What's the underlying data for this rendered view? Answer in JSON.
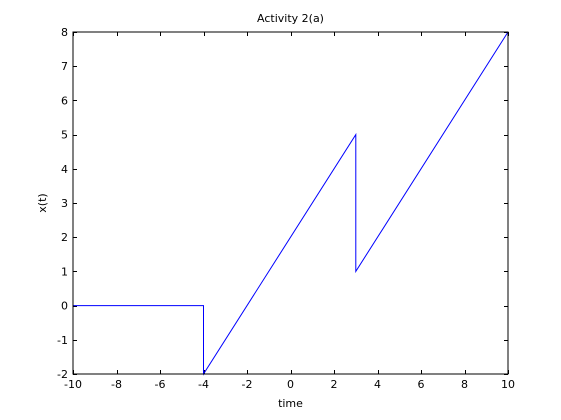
{
  "chart_data": {
    "type": "line",
    "title": "Activity 2(a)",
    "xlabel": "time",
    "ylabel": "x(t)",
    "xlim": [
      -10,
      10
    ],
    "ylim": [
      -2,
      8
    ],
    "xticks": [
      -10,
      -8,
      -6,
      -4,
      -2,
      0,
      2,
      4,
      6,
      8,
      10
    ],
    "yticks": [
      -2,
      -1,
      0,
      1,
      2,
      3,
      4,
      5,
      6,
      7,
      8
    ],
    "grid": false,
    "series": [
      {
        "color": "#0000ff",
        "x": [
          -10,
          -4,
          -4,
          3,
          3,
          10
        ],
        "y": [
          0,
          0,
          -2,
          5,
          1,
          8
        ]
      }
    ]
  }
}
